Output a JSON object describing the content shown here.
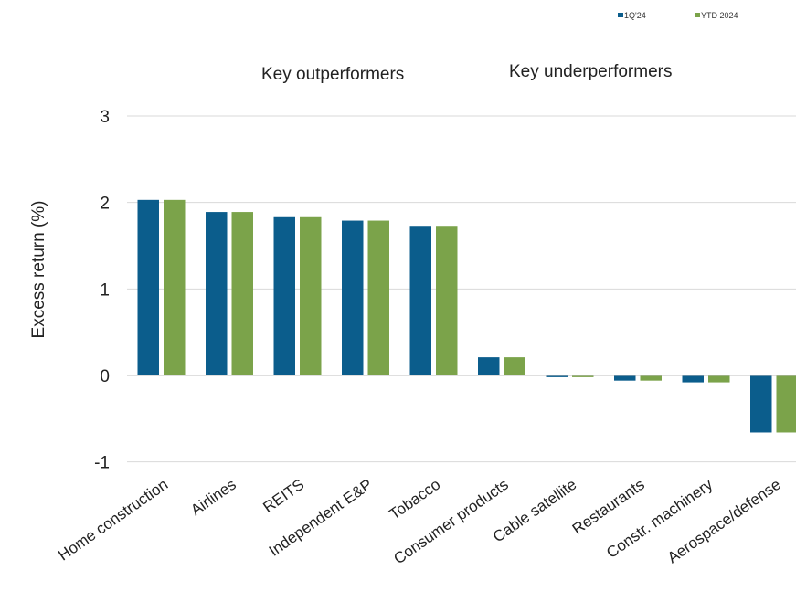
{
  "chart_data": {
    "type": "bar",
    "title": "",
    "xlabel": "",
    "ylabel": "Excess return (%)",
    "ylim": [
      -1,
      3
    ],
    "yticks": [
      3,
      2,
      1,
      0,
      -1
    ],
    "grid": true,
    "legend_position": "top-right",
    "group_labels": [
      "Key outperformers",
      "Key underperformers"
    ],
    "categories": [
      "Home construction",
      "Airlines",
      "REITS",
      "Independent E&P",
      "Tobacco",
      "Consumer products",
      "Cable satellite",
      "Restaurants",
      "Constr. machinery",
      "Aerospace/defense"
    ],
    "series": [
      {
        "name": "1Q'24",
        "color": "#0b5d8c",
        "values": [
          2.03,
          1.89,
          1.83,
          1.79,
          1.73,
          0.21,
          -0.02,
          -0.06,
          -0.08,
          -0.66
        ]
      },
      {
        "name": "YTD 2024",
        "color": "#7ba34a",
        "values": [
          2.03,
          1.89,
          1.83,
          1.79,
          1.73,
          0.21,
          -0.02,
          -0.06,
          -0.08,
          -0.66
        ]
      }
    ]
  }
}
